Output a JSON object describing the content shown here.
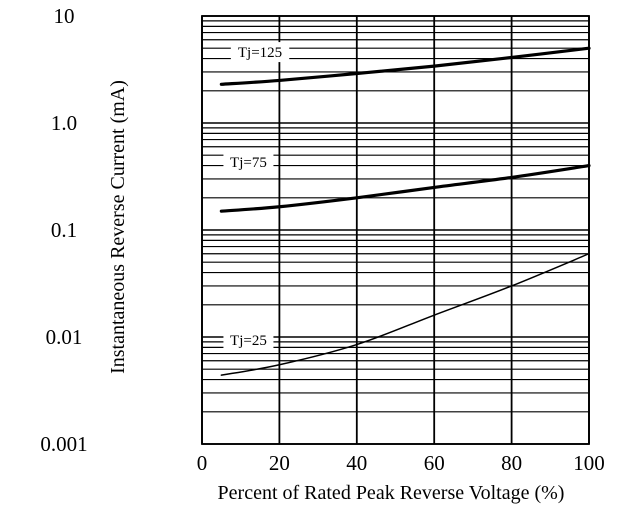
{
  "chart_data": {
    "type": "line",
    "xlabel": "Percent of Rated Peak Reverse Voltage (%)",
    "ylabel": "Instantaneous Reverse Current (mA)",
    "xlim": [
      0,
      100
    ],
    "ylim": [
      0.001,
      10
    ],
    "yscale": "log",
    "grid": true,
    "x_ticks": [
      {
        "value": 0,
        "label": "0"
      },
      {
        "value": 20,
        "label": "20"
      },
      {
        "value": 40,
        "label": "40"
      },
      {
        "value": 60,
        "label": "60"
      },
      {
        "value": 80,
        "label": "80"
      },
      {
        "value": 100,
        "label": "100"
      }
    ],
    "y_ticks": [
      {
        "value": 0.001,
        "label": "0.001"
      },
      {
        "value": 0.01,
        "label": "0.01"
      },
      {
        "value": 0.1,
        "label": "0.1"
      },
      {
        "value": 1,
        "label": "1.0"
      },
      {
        "value": 10,
        "label": "10"
      }
    ],
    "series": [
      {
        "name": "Tj=125",
        "x": [
          5,
          20,
          40,
          60,
          80,
          100
        ],
        "y": [
          2.3,
          2.5,
          2.9,
          3.4,
          4.1,
          5.0
        ],
        "stroke": "thick"
      },
      {
        "name": "Tj=75",
        "x": [
          5,
          20,
          40,
          60,
          80,
          100
        ],
        "y": [
          0.15,
          0.165,
          0.2,
          0.25,
          0.31,
          0.4
        ],
        "stroke": "thick"
      },
      {
        "name": "Tj=25",
        "x": [
          5,
          20,
          40,
          60,
          80,
          100
        ],
        "y": [
          0.0044,
          0.0055,
          0.0085,
          0.016,
          0.03,
          0.06
        ],
        "stroke": "thin"
      }
    ],
    "curve_labels": [
      {
        "text": "Tj=125",
        "x": 15,
        "y": 4.6
      },
      {
        "text": "Tj=75",
        "x": 12,
        "y": 0.43
      },
      {
        "text": "Tj=25",
        "x": 12,
        "y": 0.0094
      }
    ]
  }
}
